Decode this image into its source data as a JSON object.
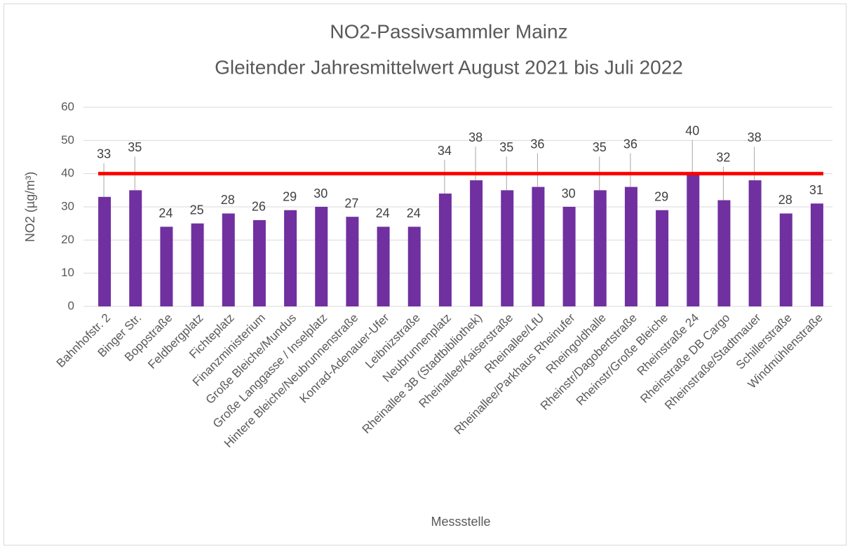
{
  "chart_data": {
    "type": "bar",
    "title": [
      "NO2-Passivsammler Mainz",
      "Gleitender Jahresmittelwert August 2021 bis Juli 2022"
    ],
    "y_label": "NO2 (µg/m³)",
    "x_label": "Messstelle",
    "categories": [
      "Bahnhofstr. 2",
      "Binger Str.",
      "Boppstraße",
      "Feldbergplatz",
      "Fichteplatz",
      "Finanzministerium",
      "Große Bleiche/Mundus",
      "Große Langgasse / Inselplatz",
      "Hintere Bleiche/Neubrunnenstraße",
      "Konrad-Adenauer-Ufer",
      "Leibnizstraße",
      "Neubrunnenplatz",
      "Rheinallee 3B (Stadtbibliothek)",
      "Rheinallee/Kaiserstraße",
      "Rheinallee/LfU",
      "Rheinallee/Parkhaus Rheinufer",
      "Rheingoldhalle",
      "Rheinstr/Dagobertstraße",
      "Rheinstr/Große Bleiche",
      "Rheinstraße 24",
      "Rheinstraße DB Cargo",
      "Rheinstraße/Stadtmauer",
      "Schillerstraße",
      "Windmühlenstraße"
    ],
    "values": [
      33,
      35,
      24,
      25,
      28,
      26,
      29,
      30,
      27,
      24,
      24,
      34,
      38,
      35,
      36,
      30,
      35,
      36,
      29,
      40,
      32,
      38,
      28,
      31
    ],
    "color": "#7030a0",
    "threshold": 40,
    "threshold_color": "#ff0000",
    "ylim": [
      0,
      60
    ],
    "yticks": [
      0,
      10,
      20,
      30,
      40,
      50,
      60
    ],
    "grid": true
  }
}
